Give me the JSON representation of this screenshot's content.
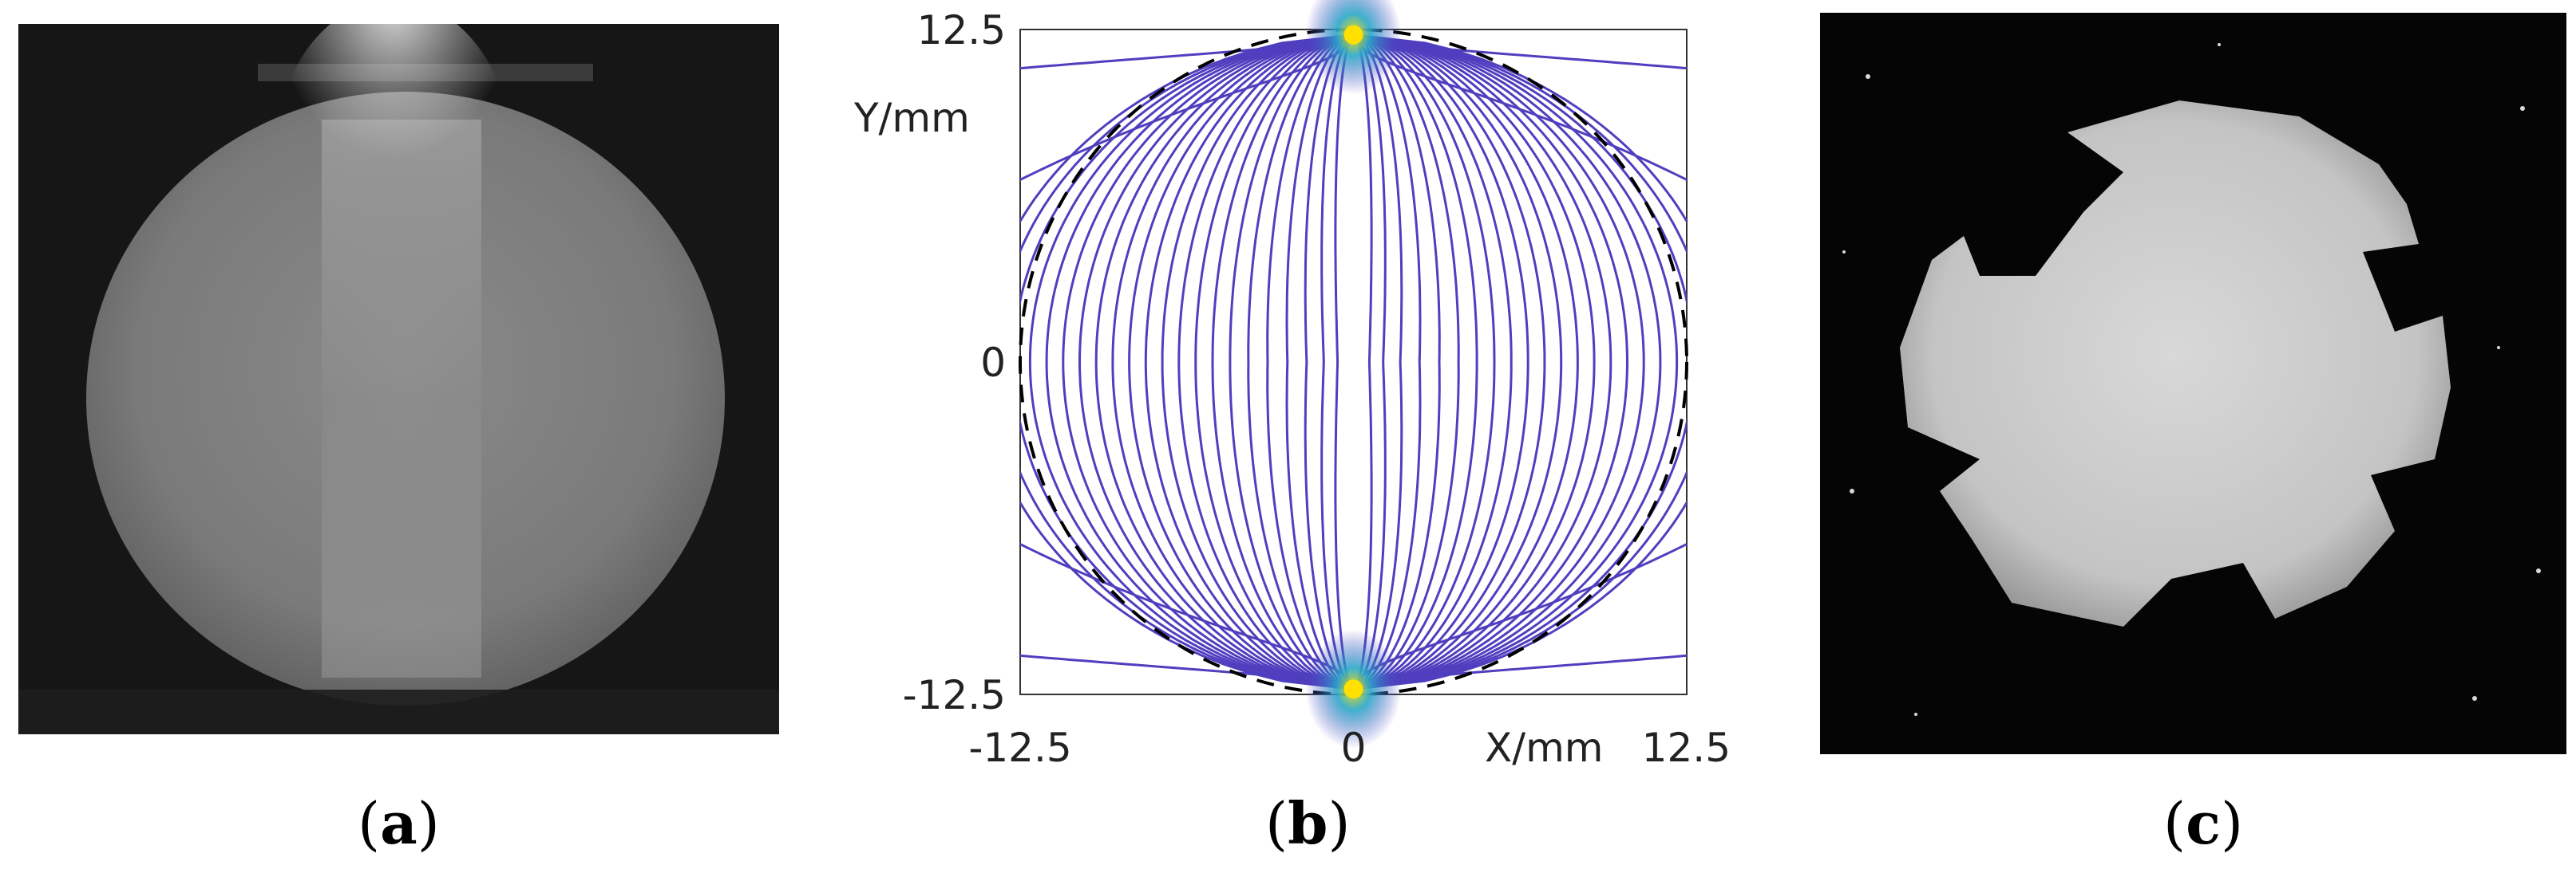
{
  "figure": {
    "panels": [
      {
        "id": "a",
        "caption_open": "(",
        "caption_letter": "a",
        "caption_close": ")"
      },
      {
        "id": "b",
        "caption_open": "(",
        "caption_letter": "b",
        "caption_close": ")"
      },
      {
        "id": "c",
        "caption_open": "(",
        "caption_letter": "c",
        "caption_close": ")"
      }
    ]
  },
  "chart_data": {
    "type": "contour",
    "xlabel": "X/mm",
    "ylabel": "Y/mm",
    "xlim": [
      -12.5,
      12.5
    ],
    "ylim": [
      -12.5,
      12.5
    ],
    "x_ticks": [
      "-12.5",
      "0",
      "12.5"
    ],
    "y_ticks": [
      "12.5",
      "0",
      "-12.5"
    ],
    "grid": false,
    "sources": [
      {
        "x": 0,
        "y": 12.3
      },
      {
        "x": 0,
        "y": -12.3
      }
    ],
    "boundary_circle": {
      "center": [
        0,
        0
      ],
      "radius": 12.5,
      "style": "dashed"
    },
    "colors": {
      "lines": "#4f3fbf",
      "source_peak": "#ffe000",
      "source_mid": "#2aa8c8",
      "boundary": "#000000"
    }
  }
}
